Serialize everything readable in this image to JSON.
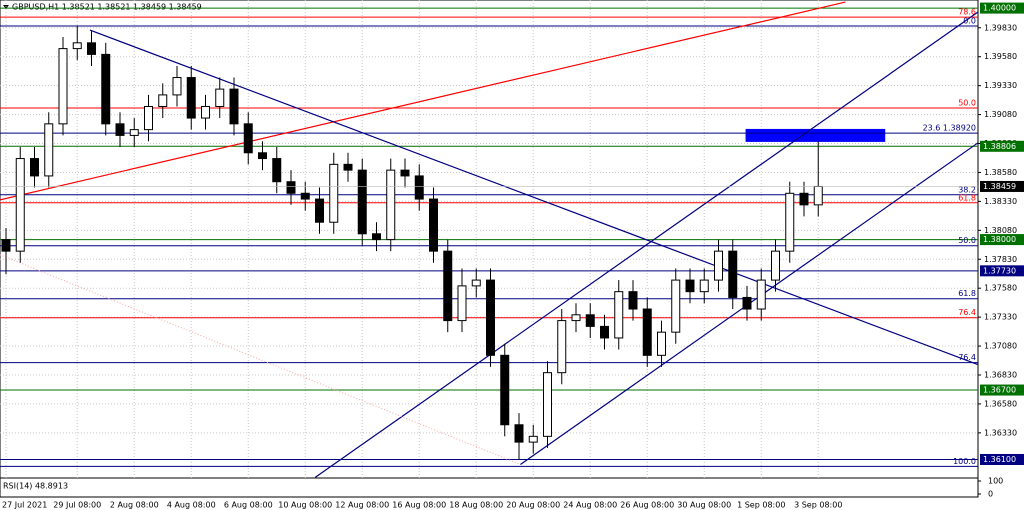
{
  "chart_data": {
    "type": "candlestick",
    "title": "GBPUSD,H1  1.38521 1.38521 1.38459 1.38459",
    "categories": [
      "27 Jul 2021",
      null,
      null,
      null,
      null,
      "29 Jul 08:00",
      null,
      null,
      null,
      "2 Aug 08:00",
      null,
      null,
      null,
      "4 Aug 08:00",
      null,
      null,
      null,
      "6 Aug 08:00",
      null,
      null,
      null,
      "10 Aug 08:00",
      null,
      null,
      null,
      "12 Aug 08:00",
      null,
      null,
      null,
      "16 Aug 08:00",
      null,
      null,
      null,
      "18 Aug 08:00",
      null,
      null,
      null,
      "20 Aug 08:00",
      null,
      null,
      null,
      "24 Aug 08:00",
      null,
      null,
      null,
      "26 Aug 08:00",
      null,
      null,
      null,
      "30 Aug 08:00",
      null,
      null,
      null,
      "1 Sep 08:00",
      null,
      null,
      null,
      "3 Sep 08:00"
    ],
    "open": [
      1.38,
      1.379,
      1.387,
      1.3855,
      1.39,
      1.3965,
      1.397,
      1.396,
      1.39,
      1.389,
      1.3895,
      1.3915,
      1.3925,
      1.394,
      1.3905,
      1.3915,
      1.393,
      1.39,
      1.3875,
      1.387,
      1.385,
      1.384,
      1.3835,
      1.3815,
      1.3865,
      1.386,
      1.3805,
      1.38,
      1.386,
      1.3855,
      1.3835,
      1.379,
      1.373,
      1.376,
      1.3765,
      1.37,
      1.364,
      1.3625,
      1.363,
      1.3685,
      1.373,
      1.3735,
      1.3725,
      1.3715,
      1.3755,
      1.374,
      1.37,
      1.372,
      1.3765,
      1.3755,
      1.3765,
      1.379,
      1.375,
      1.374,
      1.3765,
      1.379,
      1.384,
      1.383
    ],
    "high": [
      1.381,
      1.388,
      1.388,
      1.391,
      1.3975,
      1.3985,
      1.398,
      1.397,
      1.391,
      1.3905,
      1.3925,
      1.3935,
      1.395,
      1.395,
      1.3925,
      1.394,
      1.394,
      1.391,
      1.3885,
      1.388,
      1.386,
      1.385,
      1.3845,
      1.3875,
      1.3875,
      1.387,
      1.3815,
      1.387,
      1.387,
      1.3865,
      1.3845,
      1.38,
      1.3775,
      1.3775,
      1.3775,
      1.371,
      1.365,
      1.364,
      1.3695,
      1.374,
      1.3745,
      1.3745,
      1.3735,
      1.3765,
      1.3765,
      1.375,
      1.373,
      1.3775,
      1.3775,
      1.3775,
      1.38,
      1.38,
      1.376,
      1.3775,
      1.38,
      1.385,
      1.385,
      1.3885
    ],
    "low": [
      1.377,
      1.378,
      1.3845,
      1.3845,
      1.389,
      1.3955,
      1.395,
      1.389,
      1.388,
      1.388,
      1.3885,
      1.3905,
      1.3915,
      1.3895,
      1.3895,
      1.3905,
      1.389,
      1.3865,
      1.386,
      1.384,
      1.383,
      1.3825,
      1.3805,
      1.3805,
      1.385,
      1.3795,
      1.379,
      1.379,
      1.3845,
      1.3825,
      1.378,
      1.372,
      1.372,
      1.375,
      1.369,
      1.363,
      1.361,
      1.3615,
      1.362,
      1.3675,
      1.372,
      1.3715,
      1.3705,
      1.3705,
      1.373,
      1.369,
      1.369,
      1.371,
      1.3745,
      1.3745,
      1.3755,
      1.374,
      1.373,
      1.373,
      1.3755,
      1.378,
      1.382,
      1.382
    ],
    "close": [
      1.379,
      1.387,
      1.3855,
      1.39,
      1.3965,
      1.397,
      1.396,
      1.39,
      1.389,
      1.3895,
      1.3915,
      1.3925,
      1.394,
      1.3905,
      1.3915,
      1.393,
      1.39,
      1.3875,
      1.387,
      1.385,
      1.384,
      1.3835,
      1.3815,
      1.3865,
      1.386,
      1.3805,
      1.38,
      1.386,
      1.3855,
      1.3835,
      1.379,
      1.373,
      1.376,
      1.3765,
      1.37,
      1.364,
      1.3625,
      1.363,
      1.3685,
      1.373,
      1.3735,
      1.3725,
      1.3715,
      1.3755,
      1.374,
      1.37,
      1.372,
      1.3765,
      1.3755,
      1.3765,
      1.379,
      1.375,
      1.374,
      1.3765,
      1.379,
      1.384,
      1.383,
      1.38459
    ],
    "ylim": [
      1.3594,
      1.4007
    ],
    "yticks": [
      {
        "value": 1.3983,
        "label": "1.39830"
      },
      {
        "value": 1.3958,
        "label": "1.39580"
      },
      {
        "value": 1.3933,
        "label": "1.39330"
      },
      {
        "value": 1.3908,
        "label": "1.39080"
      },
      {
        "value": 1.3883,
        "label": "1.38830"
      },
      {
        "value": 1.3858,
        "label": "1.38580"
      },
      {
        "value": 1.3833,
        "label": "1.38330"
      },
      {
        "value": 1.3808,
        "label": "1.38080"
      },
      {
        "value": 1.3783,
        "label": "1.37830"
      },
      {
        "value": 1.3758,
        "label": "1.37580"
      },
      {
        "value": 1.3733,
        "label": "1.37330"
      },
      {
        "value": 1.3708,
        "label": "1.37080"
      },
      {
        "value": 1.3683,
        "label": "1.36830"
      },
      {
        "value": 1.3658,
        "label": "1.36580"
      },
      {
        "value": 1.3633,
        "label": "1.36330"
      }
    ],
    "grid": true,
    "levels": [
      {
        "price": 1.4,
        "color": "#007000",
        "label": "1.40000",
        "style": "box"
      },
      {
        "price": 1.39922,
        "color": "#ff0000",
        "label": "78.6",
        "style": "fib"
      },
      {
        "price": 1.39845,
        "color": "#000080",
        "label": "0.0",
        "style": "fib"
      },
      {
        "price": 1.39137,
        "color": "#ff0000",
        "label": "50.0",
        "style": "fib"
      },
      {
        "price": 1.3892,
        "color": "#000080",
        "label": "23.6 1.38920",
        "style": "fib"
      },
      {
        "price": 1.38806,
        "color": "#007000",
        "label": "1.38806",
        "style": "box"
      },
      {
        "price": 1.38387,
        "color": "#000080",
        "label": "38.2",
        "style": "fib"
      },
      {
        "price": 1.38318,
        "color": "#ff0000",
        "label": "61.8",
        "style": "fib"
      },
      {
        "price": 1.38,
        "color": "#007000",
        "label": "1.38000",
        "style": "box"
      },
      {
        "price": 1.37947,
        "color": "#000080",
        "label": "50.0",
        "style": "fib"
      },
      {
        "price": 1.3773,
        "color": "#000080",
        "label": "1.37730",
        "style": "box"
      },
      {
        "price": 1.37489,
        "color": "#000080",
        "label": "61.8",
        "style": "fib"
      },
      {
        "price": 1.37325,
        "color": "#ff0000",
        "label": "76.4",
        "style": "fib"
      },
      {
        "price": 1.36937,
        "color": "#000080",
        "label": "76.4",
        "style": "fib"
      },
      {
        "price": 1.367,
        "color": "#007000",
        "label": "1.36700",
        "style": "box"
      },
      {
        "price": 1.361,
        "color": "#000080",
        "label": "1.36100",
        "style": "box"
      },
      {
        "price": 1.3604,
        "color": "#000080",
        "label": "100.0",
        "style": "fib"
      }
    ],
    "trendlines": [
      {
        "x": [
          -0.42,
          58.9
        ],
        "price": [
          1.38343,
          1.40052
        ],
        "color": "#ff0000"
      },
      {
        "x": [
          5.89,
          68.2
        ],
        "price": [
          1.3981,
          1.3692
        ],
        "color": "#000080"
      },
      {
        "x": [
          21.7,
          68.2
        ],
        "price": [
          1.35945,
          1.39965
        ],
        "color": "#000080"
      },
      {
        "x": [
          36.1,
          68.2
        ],
        "price": [
          1.36057,
          1.38835
        ],
        "color": "#000080"
      },
      {
        "x": [
          -0.42,
          36.1
        ],
        "price": [
          1.37869,
          1.36057
        ],
        "color": "#ffb0b0"
      }
    ],
    "zone": {
      "x": [
        51.9,
        61.7
      ],
      "price": [
        1.38956,
        1.38844
      ],
      "color": "#0000ff"
    },
    "last_price": 1.38459,
    "rsi_label": "RSI(14) 48.8913",
    "rsi_ticks": [
      100,
      0
    ]
  }
}
